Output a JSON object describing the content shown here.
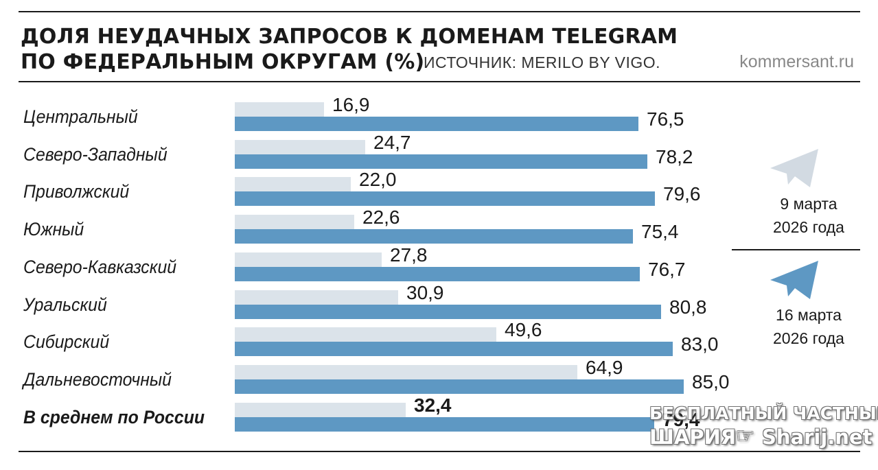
{
  "header": {
    "title_line1": "ДОЛЯ НЕУДАЧНЫХ ЗАПРОСОВ К ДОМЕНАМ TELEGRAM",
    "title_line2": "ПО ФЕДЕРАЛЬНЫМ ОКРУГАМ (%)",
    "source": "ИСТОЧНИК: MERILO BY VIGO.",
    "site": "kommersant.ru"
  },
  "chart_data": {
    "type": "bar",
    "orientation": "horizontal",
    "categories": [
      "Центральный",
      "Северо-Западный",
      "Приволжский",
      "Южный",
      "Северо-Кавказский",
      "Уральский",
      "Сибирский",
      "Дальневосточный",
      "В среднем по России"
    ],
    "series": [
      {
        "name": "9 марта 2026 года",
        "color": "#dbe3ea",
        "values": [
          16.9,
          24.7,
          22.0,
          22.6,
          27.8,
          30.9,
          49.6,
          64.9,
          32.4
        ],
        "labels": [
          "16,9",
          "24,7",
          "22,0",
          "22,6",
          "27,8",
          "30,9",
          "49,6",
          "64,9",
          "32,4"
        ]
      },
      {
        "name": "16 марта 2026 года",
        "color": "#5e98c3",
        "values": [
          76.5,
          78.2,
          79.6,
          75.4,
          76.7,
          80.8,
          83.0,
          85.0,
          79.4
        ],
        "labels": [
          "76,5",
          "78,2",
          "79,6",
          "75,4",
          "76,7",
          "80,8",
          "83,0",
          "85,0",
          "79,4"
        ]
      }
    ],
    "xlim": [
      0,
      100
    ],
    "legend_position": "right",
    "grid": false
  },
  "legend": {
    "item1_line1": "9 марта",
    "item1_line2": "2026 года",
    "item2_line1": "16 марта",
    "item2_line2": "2026 года",
    "icon1": "telegram-plane-icon-light",
    "icon2": "telegram-plane-icon-blue",
    "icon1_color": "#d2dae2",
    "icon2_color": "#5e98c3"
  },
  "watermark": {
    "line1": "БЕСПЛАТНЫЙ ЧАСТНЫЙ",
    "line2": "ШАРИЯ",
    "line3": "Sharij.net",
    "icon": "pointing-hand-icon"
  }
}
